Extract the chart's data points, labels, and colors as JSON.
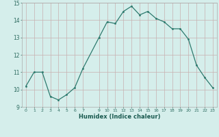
{
  "xlabel": "Humidex (Indice chaleur)",
  "x": [
    0,
    1,
    2,
    3,
    4,
    5,
    6,
    7,
    9,
    10,
    11,
    12,
    13,
    14,
    15,
    16,
    17,
    18,
    19,
    20,
    21,
    22,
    23
  ],
  "y": [
    10.2,
    11.0,
    11.0,
    9.6,
    9.4,
    9.7,
    10.1,
    11.2,
    13.0,
    13.9,
    13.8,
    14.5,
    14.8,
    14.3,
    14.5,
    14.1,
    13.9,
    13.5,
    13.5,
    12.9,
    11.4,
    10.7,
    10.1
  ],
  "xlim": [
    -0.5,
    23.5
  ],
  "ylim": [
    9,
    15
  ],
  "yticks": [
    9,
    10,
    11,
    12,
    13,
    14,
    15
  ],
  "xticks": [
    0,
    1,
    2,
    3,
    4,
    5,
    6,
    7,
    9,
    10,
    11,
    12,
    13,
    14,
    15,
    16,
    17,
    18,
    19,
    20,
    21,
    22,
    23
  ],
  "line_color": "#2d7a6e",
  "marker_color": "#2d7a6e",
  "bg_color": "#d5eeeb",
  "grid_color_h": "#c8b0b0",
  "grid_color_v": "#c8b0b0"
}
